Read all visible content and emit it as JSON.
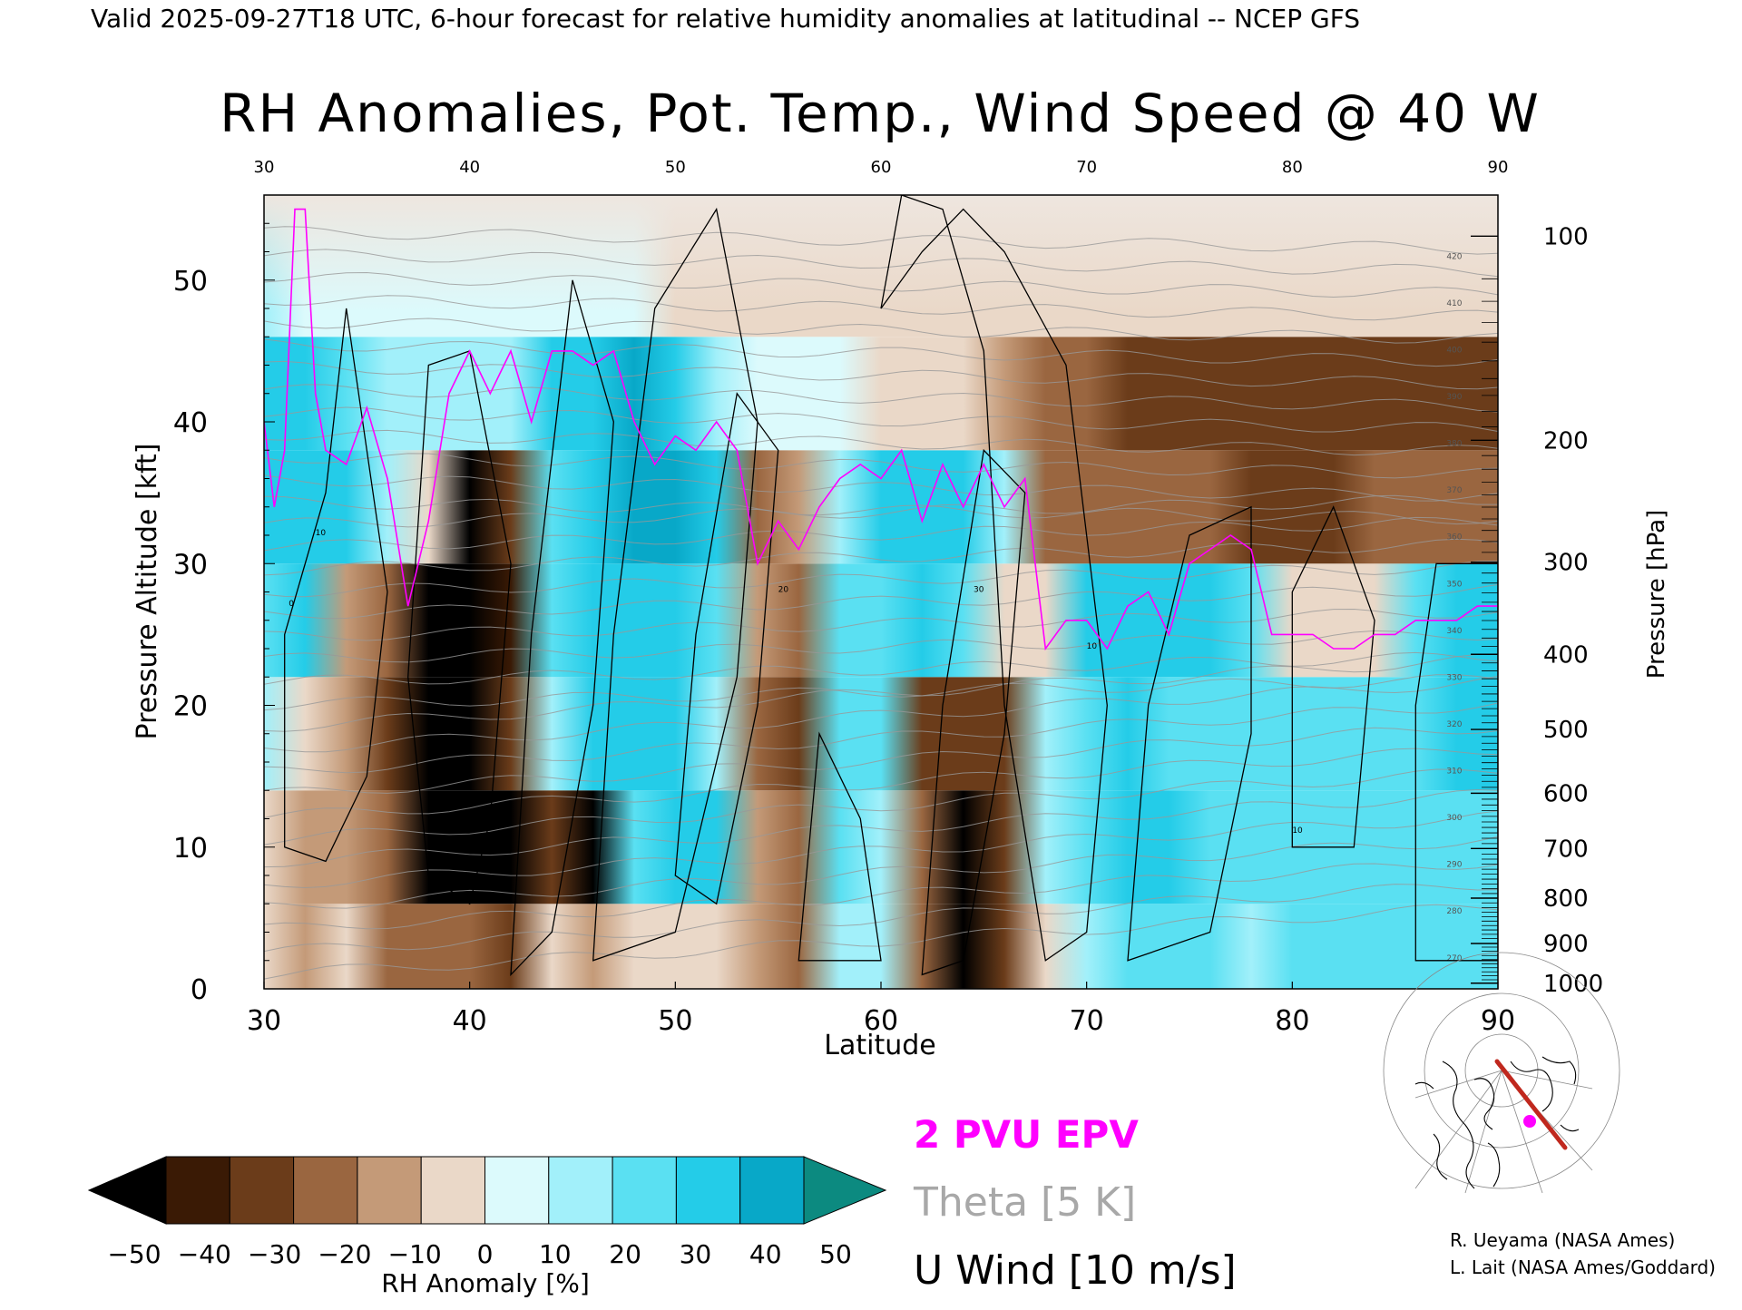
{
  "header": {
    "valid_line": "Valid 2025-09-27T18 UTC, 6-hour forecast for relative humidity anomalies at latitudinal -- NCEP GFS",
    "main_title": "RH Anomalies, Pot. Temp., Wind Speed @ 40 W"
  },
  "chart_data": {
    "type": "heatmap",
    "title": "RH Anomalies, Pot. Temp., Wind Speed @ 40 W",
    "xlabel": "Latitude",
    "ylabel_left": "Pressure Altitude [kft]",
    "ylabel_right": "Pressure [hPa]",
    "xlim": [
      30,
      90
    ],
    "ylim_kft": [
      0,
      56
    ],
    "x_ticks": [
      "30",
      "40",
      "50",
      "60",
      "70",
      "80",
      "90"
    ],
    "top_x_ticks": [
      "30",
      "40",
      "50",
      "60",
      "70",
      "80",
      "90"
    ],
    "y_ticks_kft": [
      "0",
      "10",
      "20",
      "30",
      "40",
      "50"
    ],
    "pressure_ticks": [
      {
        "label": "100",
        "kft": 53.1
      },
      {
        "label": "200",
        "kft": 38.7
      },
      {
        "label": "300",
        "kft": 30.1
      },
      {
        "label": "400",
        "kft": 23.6
      },
      {
        "label": "500",
        "kft": 18.3
      },
      {
        "label": "600",
        "kft": 13.8
      },
      {
        "label": "700",
        "kft": 9.9
      },
      {
        "label": "800",
        "kft": 6.4
      },
      {
        "label": "900",
        "kft": 3.2
      },
      {
        "label": "1000",
        "kft": 0.4
      }
    ],
    "theta_contour_labels": [
      "270",
      "280",
      "290",
      "300",
      "310",
      "320",
      "330",
      "340",
      "350",
      "360",
      "370",
      "380",
      "390",
      "400",
      "410",
      "420"
    ],
    "wind_contour_labels": [
      "0",
      "10",
      "20",
      "30"
    ],
    "rh_anomaly_field": {
      "lat": [
        30,
        32,
        34,
        36,
        38,
        40,
        42,
        44,
        46,
        48,
        50,
        52,
        54,
        56,
        58,
        60,
        62,
        64,
        66,
        68,
        70,
        72,
        74,
        76,
        78,
        80,
        82,
        84,
        86,
        88,
        90
      ],
      "kft": [
        2,
        10,
        18,
        26,
        34,
        42,
        50
      ],
      "values": [
        [
          -10,
          -20,
          -10,
          -30,
          -30,
          -30,
          -35,
          -10,
          -20,
          -5,
          -10,
          -10,
          -20,
          -25,
          10,
          10,
          -30,
          -50,
          -40,
          -10,
          10,
          20,
          20,
          20,
          10,
          20,
          20,
          20,
          20,
          20,
          20
        ],
        [
          -5,
          -20,
          -20,
          -30,
          -50,
          -50,
          -50,
          -40,
          -50,
          20,
          30,
          30,
          -20,
          -30,
          20,
          15,
          -30,
          -50,
          -40,
          10,
          25,
          30,
          30,
          20,
          20,
          20,
          20,
          20,
          25,
          25,
          25
        ],
        [
          10,
          -10,
          -20,
          -40,
          -50,
          -50,
          -40,
          10,
          30,
          30,
          30,
          10,
          -30,
          -40,
          20,
          20,
          -40,
          -40,
          -40,
          10,
          25,
          30,
          20,
          20,
          20,
          20,
          25,
          20,
          25,
          35,
          35
        ],
        [
          20,
          30,
          -20,
          -30,
          -50,
          -50,
          -45,
          20,
          30,
          35,
          30,
          20,
          -20,
          -30,
          20,
          25,
          30,
          20,
          -10,
          -10,
          30,
          30,
          30,
          30,
          25,
          -10,
          -10,
          -10,
          20,
          30,
          30
        ],
        [
          35,
          30,
          30,
          10,
          -5,
          -50,
          -40,
          25,
          35,
          40,
          40,
          35,
          -30,
          -20,
          15,
          30,
          35,
          30,
          15,
          -30,
          -30,
          -30,
          -30,
          -30,
          -40,
          -40,
          -40,
          -30,
          -30,
          -30,
          -30
        ],
        [
          30,
          30,
          20,
          15,
          10,
          10,
          10,
          30,
          35,
          40,
          35,
          10,
          5,
          0,
          0,
          -5,
          -10,
          -10,
          -20,
          -30,
          -30,
          -35,
          -35,
          -35,
          -35,
          -35,
          -35,
          -35,
          -35,
          -35,
          -35
        ],
        [
          10,
          5,
          5,
          0,
          0,
          0,
          0,
          0,
          0,
          0,
          -5,
          -5,
          -5,
          -5,
          -5,
          -5,
          -5,
          -10,
          -10,
          -10,
          -10,
          -10,
          -10,
          -10,
          -10,
          -10,
          -10,
          -10,
          -10,
          -10,
          -10
        ]
      ]
    },
    "epv_2pvu_line": {
      "lat": [
        30,
        30.5,
        31,
        31.5,
        32,
        32.5,
        33,
        34,
        35,
        36,
        37,
        38,
        39,
        40,
        41,
        42,
        43,
        44,
        45,
        46,
        47,
        48,
        49,
        50,
        51,
        52,
        53,
        54,
        55,
        56,
        57,
        58,
        59,
        60,
        61,
        62,
        63,
        64,
        65,
        66,
        67,
        68,
        69,
        70,
        71,
        72,
        73,
        74,
        75,
        76,
        77,
        78,
        79,
        80,
        81,
        82,
        83,
        84,
        85,
        86,
        87,
        88,
        89,
        90
      ],
      "kft": [
        40,
        34,
        38,
        55,
        55,
        42,
        38,
        37,
        41,
        36,
        27,
        33,
        42,
        45,
        42,
        45,
        40,
        45,
        45,
        44,
        45,
        40,
        37,
        39,
        38,
        40,
        38,
        30,
        33,
        31,
        34,
        36,
        37,
        36,
        38,
        33,
        37,
        34,
        37,
        34,
        36,
        24,
        26,
        26,
        24,
        27,
        28,
        25,
        30,
        31,
        32,
        31,
        25,
        25,
        25,
        24,
        24,
        25,
        25,
        26,
        26,
        26,
        27,
        27
      ]
    },
    "legend": {
      "epv": "2 PVU EPV",
      "theta": "Theta [5 K]",
      "wind": "U Wind [10 m/s]"
    },
    "colorbar": {
      "label": "RH Anomaly [%]",
      "ticks": [
        "−50",
        "−40",
        "−30",
        "−20",
        "−10",
        "0",
        "10",
        "20",
        "30",
        "40",
        "50"
      ],
      "colors": [
        "#000000",
        "#3a1a05",
        "#6b3c1a",
        "#9a6640",
        "#c49a78",
        "#ead8c8",
        "#dcfafc",
        "#a2f0fa",
        "#5ae0f2",
        "#24cce8",
        "#08a8c8",
        "#0c8a80"
      ],
      "range": [
        -50,
        50
      ]
    },
    "colors": {
      "epv": "#ff00ff",
      "theta": "#999999",
      "wind": "#000000"
    }
  },
  "credits": {
    "line1": "R. Ueyama (NASA Ames)",
    "line2": "L. Lait (NASA Ames/Goddard)"
  },
  "inset_map": {
    "marker_color": "#ff00ff",
    "track_color": "#c0281e"
  }
}
